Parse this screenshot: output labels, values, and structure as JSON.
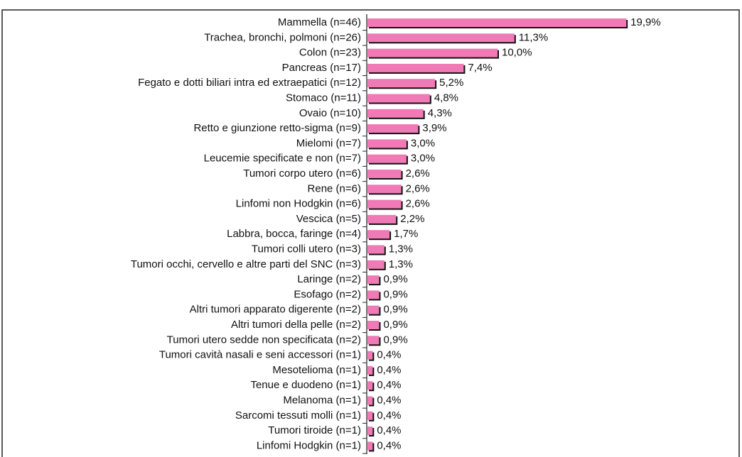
{
  "chart_data": {
    "type": "hbar",
    "color": "#f07ab6",
    "categories": [
      "Mammella (n=46)",
      "Trachea, bronchi, polmoni (n=26)",
      "Colon (n=23)",
      "Pancreas (n=17)",
      "Fegato e dotti biliari intra ed extraepatici (n=12)",
      "Stomaco (n=11)",
      "Ovaio (n=10)",
      "Retto e giunzione retto-sigma (n=9)",
      "Mielomi (n=7)",
      "Leucemie specificate e non (n=7)",
      "Tumori corpo utero (n=6)",
      "Rene (n=6)",
      "Linfomi non Hodgkin (n=6)",
      "Vescica (n=5)",
      "Labbra, bocca, faringe (n=4)",
      "Tumori colli utero (n=3)",
      "Tumori occhi, cervello e altre parti del SNC (n=3)",
      "Laringe (n=2)",
      "Esofago (n=2)",
      "Altri tumori apparato digerente (n=2)",
      "Altri tumori della pelle (n=2)",
      "Tumori utero sedde non specificata (n=2)",
      "Tumori cavità nasali e seni accessori (n=1)",
      "Mesotelioma (n=1)",
      "Tenue e duodeno (n=1)",
      "Melanoma (n=1)",
      "Sarcomi tessuti molli (n=1)",
      "Tumori tiroide (n=1)",
      "Linfomi Hodgkin (n=1)"
    ],
    "values": [
      19.9,
      11.3,
      10.0,
      7.4,
      5.2,
      4.8,
      4.3,
      3.9,
      3.0,
      3.0,
      2.6,
      2.6,
      2.6,
      2.2,
      1.7,
      1.3,
      1.3,
      0.9,
      0.9,
      0.9,
      0.9,
      0.9,
      0.4,
      0.4,
      0.4,
      0.4,
      0.4,
      0.4,
      0.4
    ],
    "value_labels": [
      "19,9%",
      "11,3%",
      "10,0%",
      "7,4%",
      "5,2%",
      "4,8%",
      "4,3%",
      "3,9%",
      "3,0%",
      "3,0%",
      "2,6%",
      "2,6%",
      "2,6%",
      "2,2%",
      "1,7%",
      "1,3%",
      "1,3%",
      "0,9%",
      "0,9%",
      "0,9%",
      "0,9%",
      "0,9%",
      "0,4%",
      "0,4%",
      "0,4%",
      "0,4%",
      "0,4%",
      "0,4%",
      "0,4%"
    ]
  }
}
